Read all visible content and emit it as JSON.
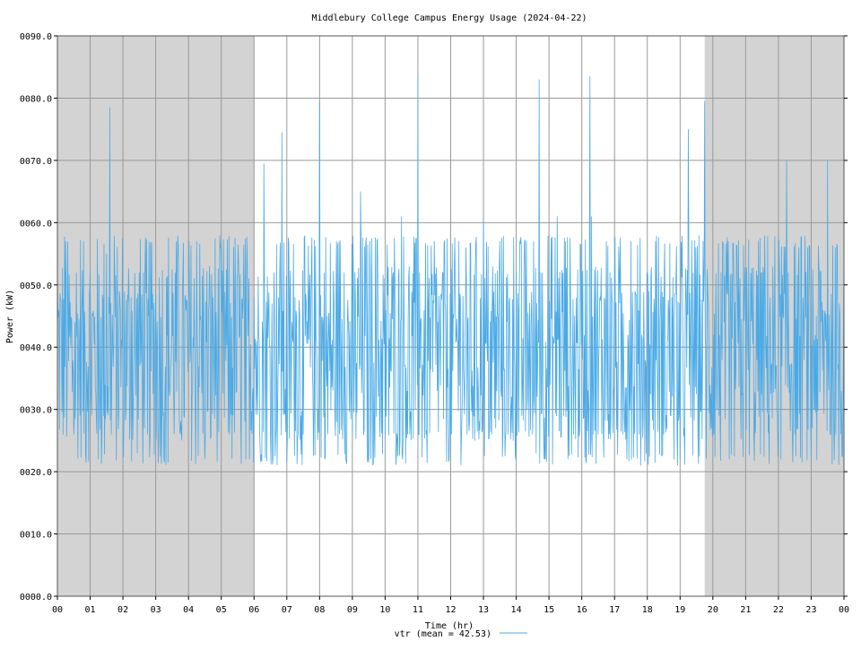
{
  "chart_data": {
    "type": "line",
    "title": "Middlebury College Campus Energy Usage (2024-04-22)",
    "xlabel": "Time (hr)",
    "ylabel": "Power (kW)",
    "xlim": [
      0,
      24
    ],
    "ylim": [
      0,
      90
    ],
    "x_tick_labels": [
      "00",
      "01",
      "02",
      "03",
      "04",
      "05",
      "06",
      "07",
      "08",
      "09",
      "10",
      "11",
      "12",
      "13",
      "14",
      "15",
      "16",
      "17",
      "18",
      "19",
      "20",
      "21",
      "22",
      "23",
      "00"
    ],
    "y_tick_values": [
      0,
      10,
      20,
      30,
      40,
      50,
      60,
      70,
      80,
      90
    ],
    "y_tick_labels": [
      "0000.0",
      "0010.0",
      "0020.0",
      "0030.0",
      "0040.0",
      "0050.0",
      "0060.0",
      "0070.0",
      "0080.0",
      "0090.0"
    ],
    "grid": true,
    "off_hours_shading": [
      [
        0,
        6
      ],
      [
        19.75,
        24
      ]
    ],
    "shading_color": "#d3d3d3",
    "legend": {
      "position": "bottom-center"
    },
    "series": [
      {
        "name": "vtr (mean = 42.53)",
        "color": "#4aaae6",
        "mean": 42.53,
        "x": [
          0.0,
          0.25,
          0.5,
          0.75,
          1.0,
          1.25,
          1.5,
          1.6,
          1.75,
          2.0,
          2.25,
          2.5,
          2.75,
          3.0,
          3.25,
          3.5,
          3.75,
          4.0,
          4.25,
          4.5,
          4.75,
          5.0,
          5.25,
          5.5,
          5.75,
          6.0,
          6.3,
          6.5,
          6.75,
          6.85,
          7.0,
          7.25,
          7.5,
          7.75,
          8.0,
          8.25,
          8.5,
          8.75,
          9.0,
          9.25,
          9.5,
          9.75,
          10.0,
          10.25,
          10.5,
          10.75,
          11.0,
          11.05,
          11.25,
          11.5,
          11.75,
          12.0,
          12.25,
          12.5,
          12.75,
          13.0,
          13.25,
          13.5,
          13.75,
          14.0,
          14.25,
          14.5,
          14.7,
          14.75,
          15.0,
          15.25,
          15.5,
          15.75,
          16.0,
          16.25,
          16.3,
          16.5,
          16.75,
          17.0,
          17.25,
          17.5,
          17.75,
          18.0,
          18.25,
          18.5,
          18.75,
          19.0,
          19.25,
          19.4,
          19.75,
          20.0,
          20.25,
          20.5,
          20.75,
          21.0,
          21.25,
          21.5,
          21.75,
          22.0,
          22.25,
          22.3,
          22.5,
          22.75,
          23.0,
          23.25,
          23.5,
          23.75,
          24.0
        ],
        "y": [
          52.5,
          57.0,
          26.0,
          48.0,
          52.5,
          22.0,
          55.0,
          78.5,
          52.0,
          26.0,
          48.0,
          52.0,
          26.0,
          48.5,
          22.0,
          52.5,
          26.0,
          46.0,
          57.0,
          22.0,
          48.0,
          52.5,
          26.0,
          52.0,
          22.0,
          48.0,
          69.5,
          26.0,
          48.0,
          74.5,
          21.5,
          48.0,
          26.0,
          52.0,
          79.5,
          26.0,
          48.0,
          52.0,
          26.0,
          65.0,
          21.5,
          57.0,
          26.0,
          52.0,
          61.0,
          26.0,
          83.5,
          52.0,
          26.0,
          57.0,
          52.0,
          26.0,
          57.0,
          26.0,
          52.0,
          61.0,
          26.0,
          57.0,
          26.0,
          52.0,
          57.0,
          26.0,
          83.0,
          52.0,
          26.0,
          61.0,
          57.0,
          26.0,
          52.0,
          83.5,
          61.0,
          26.0,
          57.0,
          52.0,
          26.0,
          57.0,
          26.0,
          52.0,
          57.0,
          26.0,
          48.0,
          22.0,
          75.0,
          52.0,
          79.5,
          26.0,
          52.0,
          22.0,
          48.0,
          52.0,
          26.0,
          52.0,
          48.0,
          26.0,
          70.0,
          52.0,
          26.0,
          48.0,
          22.0,
          52.0,
          70.0,
          26.0,
          52.5
        ]
      }
    ]
  }
}
